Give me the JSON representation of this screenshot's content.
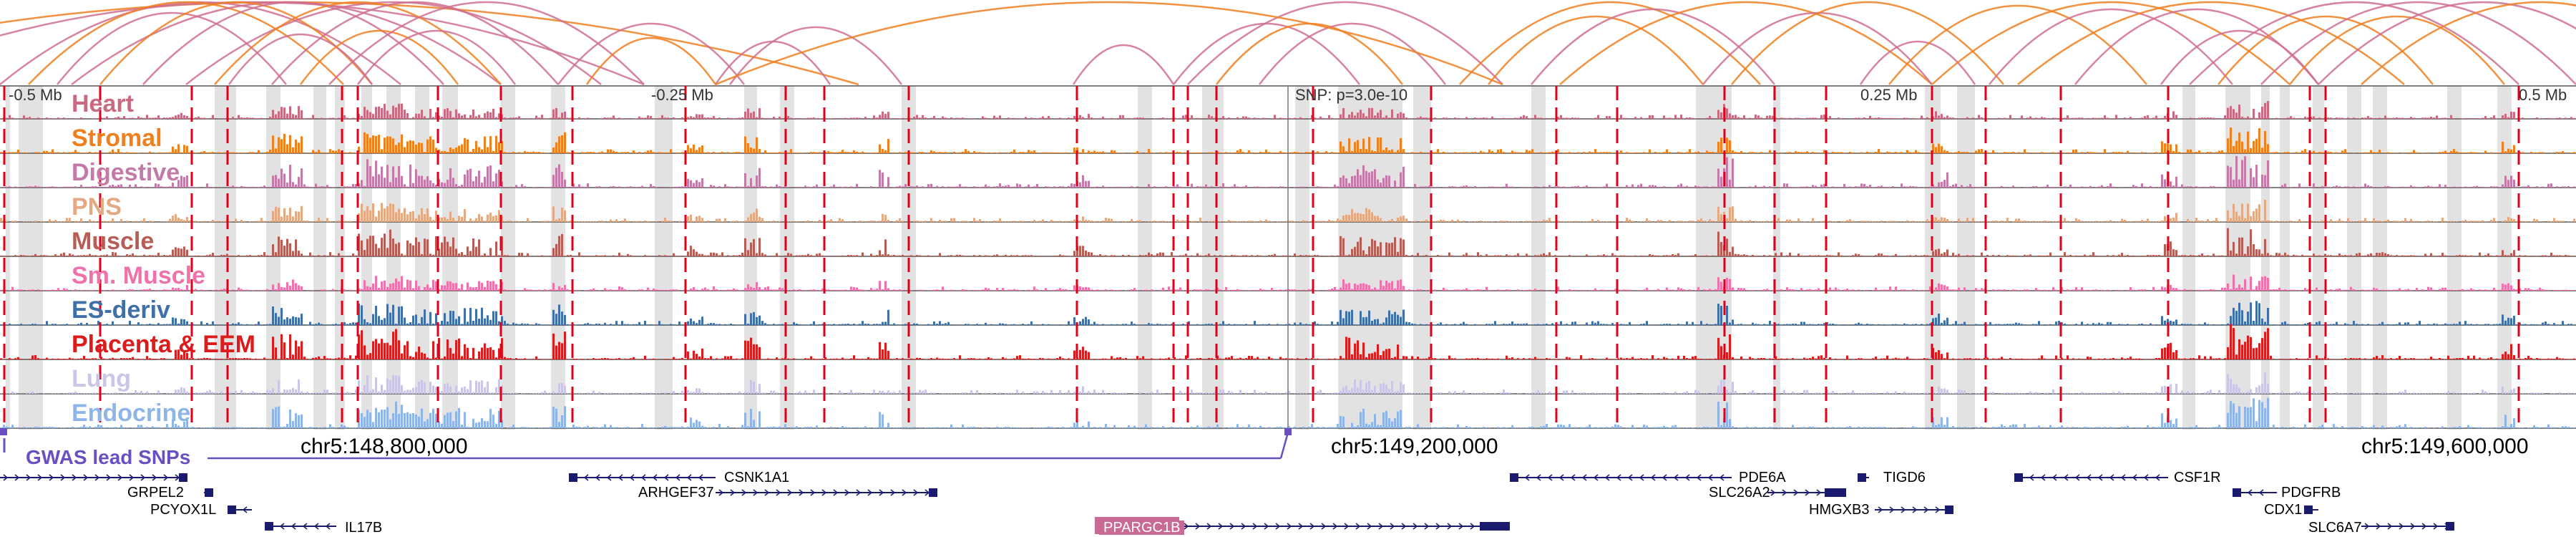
{
  "browser": {
    "axis_labels": [
      {
        "text": "-0.5 Mb",
        "align": "left"
      },
      {
        "text": "-0.25 Mb",
        "align": "right"
      },
      {
        "text": "SNP: p=3.0e-10",
        "align": "left"
      },
      {
        "text": "0.25 Mb",
        "align": "right"
      },
      {
        "text": "0.5 Mb",
        "align": "right"
      }
    ],
    "tracks": [
      {
        "name": "Heart",
        "color": "#c96a80"
      },
      {
        "name": "Stromal",
        "color": "#f07f1e"
      },
      {
        "name": "Digestive",
        "color": "#c47aa6"
      },
      {
        "name": "PNS",
        "color": "#e2a983"
      },
      {
        "name": "Muscle",
        "color": "#b75d55"
      },
      {
        "name": "Sm. Muscle",
        "color": "#ef73aa"
      },
      {
        "name": "ES-deriv",
        "color": "#3f70a8"
      },
      {
        "name": "Placenta & EEM",
        "color": "#dc1c1c"
      },
      {
        "name": "Lung",
        "color": "#cbc6e6"
      },
      {
        "name": "Endocrine",
        "color": "#8fb5e8"
      }
    ],
    "gwas_label": "GWAS lead SNPs",
    "coordinates": [
      "chr5:148,800,000",
      "chr5:149,200,000",
      "chr5:149,600,000"
    ],
    "genes": [
      {
        "name": "GRPEL2",
        "highlight": false
      },
      {
        "name": "PCYOX1L",
        "highlight": false
      },
      {
        "name": "IL17B",
        "highlight": false
      },
      {
        "name": "CSNK1A1",
        "highlight": false
      },
      {
        "name": "ARHGEF37",
        "highlight": false
      },
      {
        "name": "PPARGC1B",
        "highlight": true
      },
      {
        "name": "PDE6A",
        "highlight": false
      },
      {
        "name": "SLC26A2",
        "highlight": false
      },
      {
        "name": "TIGD6",
        "highlight": false
      },
      {
        "name": "HMGXB3",
        "highlight": false
      },
      {
        "name": "CSF1R",
        "highlight": false
      },
      {
        "name": "PDGFRB",
        "highlight": false
      },
      {
        "name": "CDX1",
        "highlight": false
      },
      {
        "name": "SLC6A7",
        "highlight": false
      }
    ],
    "colors": {
      "arc_pink": "#cf6f8f",
      "arc_orange": "#f07f1e",
      "gwas_line": "#6a4fc0",
      "snp_line": "#e0001a",
      "gene_color": "#1a1a6e",
      "highlight_bg": "#c96a96"
    }
  }
}
